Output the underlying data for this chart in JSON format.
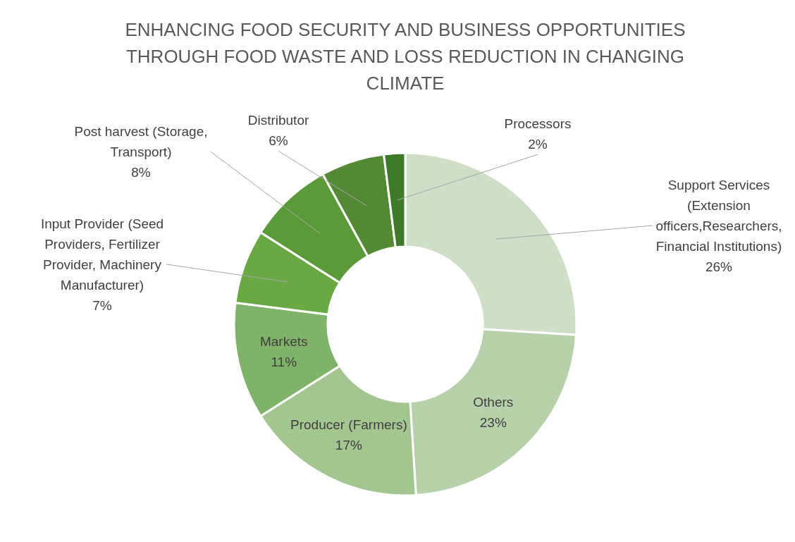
{
  "chart_data": {
    "type": "donut",
    "title": "ENHANCING FOOD SECURITY AND BUSINESS OPPORTUNITIES THROUGH FOOD WASTE AND LOSS REDUCTION IN CHANGING CLIMATE",
    "categories": [
      "Support Services (Extension officers,Researchers, Financial Institutions)",
      "Others",
      "Producer (Farmers)",
      "Markets",
      "Input Provider  (Seed Providers,  Fertilizer Provider, Machinery Manufacturer)",
      "Post harvest (Storage,  Transport)",
      "Distributor",
      "Processors"
    ],
    "values": [
      26,
      23,
      17,
      11,
      7,
      8,
      6,
      2
    ],
    "value_labels": [
      "26%",
      "23%",
      "17%",
      "11%",
      "7%",
      "8%",
      "6%",
      "2%"
    ],
    "colors": [
      "#cfdfc7",
      "#b6d1a9",
      "#a3c58f",
      "#80b36a",
      "#6aa844",
      "#5b9a38",
      "#548a35",
      "#3f7a2a"
    ]
  }
}
